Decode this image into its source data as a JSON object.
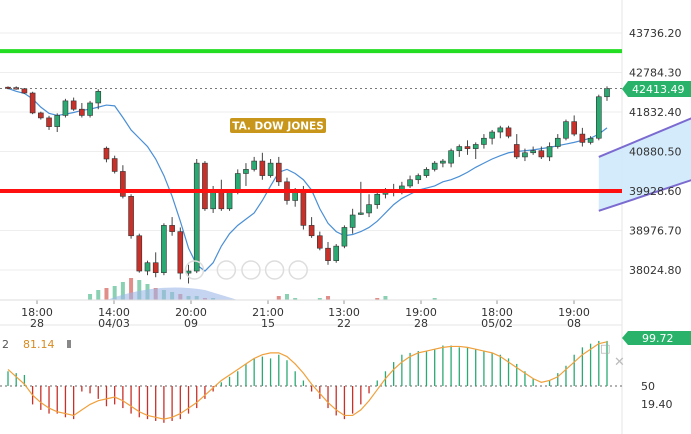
{
  "instrument_label": "TA. DOW JONES",
  "last_price_label": "42413.49",
  "ind_value_left": "81.14",
  "ind_prefix": "2",
  "ind_value_right": "99.72",
  "colors": {
    "support": "#ff1010",
    "resistance": "#22dd22",
    "up": "#2aaa72",
    "down": "#c8302a",
    "ma": "#4a8fd6",
    "channel_fill": "#cde7fb",
    "channel_line": "#7b6bd0",
    "badge": "#c8961a",
    "price_badge": "#29b36a",
    "osc_line": "#f0a03c"
  },
  "chart_data": [
    {
      "type": "candlestick",
      "y_ticks": [
        "43736.20",
        "42784.30",
        "41832.40",
        "40880.50",
        "39928.60",
        "38976.70",
        "38024.80"
      ],
      "x_ticks": [
        {
          "top": "18:00",
          "bottom": "28"
        },
        {
          "top": "14:00",
          "bottom": "04/03"
        },
        {
          "top": "20:00",
          "bottom": "09"
        },
        {
          "top": "21:00",
          "bottom": "15"
        },
        {
          "top": "13:00",
          "bottom": "22"
        },
        {
          "top": "19:00",
          "bottom": "28"
        },
        {
          "top": "18:00",
          "bottom": "05/02"
        },
        {
          "top": "19:00",
          "bottom": "08"
        }
      ],
      "horizontal_lines": [
        {
          "name": "resistance",
          "value": 43300
        },
        {
          "name": "support",
          "value": 39930
        }
      ],
      "candles": [
        [
          42430,
          42450,
          42380,
          42420
        ],
        [
          42420,
          42450,
          42370,
          42390
        ],
        [
          42390,
          42410,
          42270,
          42290
        ],
        [
          42290,
          42320,
          41780,
          41810
        ],
        [
          41810,
          41840,
          41650,
          41690
        ],
        [
          41690,
          41740,
          41400,
          41480
        ],
        [
          41480,
          41800,
          41350,
          41750
        ],
        [
          41750,
          42150,
          41700,
          42100
        ],
        [
          42100,
          42180,
          41860,
          41900
        ],
        [
          41900,
          42050,
          41700,
          41750
        ],
        [
          41750,
          42100,
          41700,
          42050
        ],
        [
          42050,
          42380,
          41900,
          42330
        ],
        [
          40960,
          41000,
          40620,
          40700
        ],
        [
          40710,
          40780,
          40350,
          40400
        ],
        [
          40400,
          40550,
          39750,
          39800
        ],
        [
          39800,
          39850,
          38780,
          38850
        ],
        [
          38850,
          38900,
          37960,
          38000
        ],
        [
          38000,
          38250,
          37900,
          38200
        ],
        [
          38200,
          38450,
          37850,
          37960
        ],
        [
          37960,
          39150,
          37900,
          39100
        ],
        [
          39100,
          39300,
          38850,
          38950
        ],
        [
          38950,
          39050,
          37800,
          37950
        ],
        [
          37950,
          38150,
          37700,
          38000
        ],
        [
          38000,
          40700,
          37950,
          40600
        ],
        [
          40600,
          40650,
          39450,
          39500
        ],
        [
          39500,
          40050,
          39400,
          39950
        ],
        [
          39950,
          40200,
          39450,
          39500
        ],
        [
          39500,
          39950,
          39450,
          39900
        ],
        [
          39900,
          40450,
          39850,
          40350
        ],
        [
          40350,
          40600,
          40050,
          40450
        ],
        [
          40450,
          40750,
          40400,
          40650
        ],
        [
          40650,
          40850,
          40200,
          40300
        ],
        [
          40300,
          40700,
          40250,
          40600
        ],
        [
          40600,
          40750,
          40050,
          40150
        ],
        [
          40150,
          40250,
          39600,
          39700
        ],
        [
          39700,
          40000,
          39550,
          39950
        ],
        [
          39950,
          40050,
          39000,
          39100
        ],
        [
          39100,
          39300,
          38800,
          38850
        ],
        [
          38850,
          38950,
          38500,
          38550
        ],
        [
          38550,
          38700,
          38150,
          38250
        ],
        [
          38250,
          38650,
          38200,
          38600
        ],
        [
          38600,
          39100,
          38550,
          39050
        ],
        [
          39050,
          39500,
          38900,
          39350
        ],
        [
          39400,
          40150,
          39350,
          39400
        ],
        [
          39400,
          39850,
          39300,
          39600
        ],
        [
          39600,
          39900,
          39500,
          39850
        ],
        [
          39850,
          40000,
          39750,
          39950
        ],
        [
          39950,
          40100,
          39800,
          39900
        ],
        [
          39900,
          40150,
          39850,
          40050
        ],
        [
          40050,
          40300,
          40000,
          40200
        ],
        [
          40200,
          40350,
          40100,
          40300
        ],
        [
          40300,
          40500,
          40250,
          40450
        ],
        [
          40450,
          40650,
          40400,
          40600
        ],
        [
          40600,
          40700,
          40500,
          40650
        ],
        [
          40600,
          40950,
          40500,
          40900
        ],
        [
          40900,
          41050,
          40750,
          41000
        ],
        [
          41000,
          41150,
          40800,
          40950
        ],
        [
          40950,
          41100,
          40700,
          41050
        ],
        [
          41050,
          41300,
          40950,
          41200
        ],
        [
          41200,
          41400,
          41050,
          41350
        ],
        [
          41350,
          41500,
          41200,
          41450
        ],
        [
          41450,
          41500,
          41200,
          41250
        ],
        [
          41050,
          41300,
          40700,
          40750
        ],
        [
          40750,
          40950,
          40650,
          40850
        ],
        [
          40850,
          41000,
          40800,
          40900
        ],
        [
          40900,
          41000,
          40700,
          40750
        ],
        [
          40750,
          41100,
          40650,
          41000
        ],
        [
          41000,
          41300,
          40950,
          41200
        ],
        [
          41200,
          41650,
          41150,
          41600
        ],
        [
          41600,
          41750,
          41250,
          41300
        ],
        [
          41300,
          41450,
          41000,
          41100
        ],
        [
          41100,
          41250,
          41050,
          41200
        ],
        [
          41200,
          42250,
          41150,
          42200
        ],
        [
          42200,
          42450,
          42100,
          42400
        ]
      ],
      "moving_average": [
        42400,
        42330,
        42280,
        42150,
        41950,
        41800,
        41750,
        41780,
        41820,
        41870,
        41900,
        41950,
        42000,
        41980,
        41700,
        41400,
        41200,
        41000,
        40700,
        40300,
        39800,
        39200,
        38550,
        38150,
        38000,
        38200,
        38600,
        38900,
        39100,
        39250,
        39400,
        39700,
        40050,
        40380,
        40450,
        40350,
        40200,
        39950,
        39500,
        39150,
        38950,
        38850,
        38880,
        38950,
        39050,
        39200,
        39400,
        39600,
        39750,
        39850,
        39950,
        40000,
        40050,
        40150,
        40200,
        40280,
        40380,
        40500,
        40600,
        40700,
        40780,
        40850,
        40880,
        40900,
        40920,
        40950,
        40980,
        41020,
        41060,
        41100,
        41150,
        41200,
        41300,
        41450
      ],
      "channel": {
        "lower_start": [
          72,
          39450
        ],
        "lower_end": [
          100,
          41400
        ],
        "upper_start": [
          72,
          40750
        ],
        "upper_end": [
          100,
          43200
        ]
      }
    },
    {
      "type": "oscillator",
      "y_ticks": [
        "50",
        "19.40"
      ],
      "histogram": [
        66,
        64,
        62,
        30,
        24,
        20,
        20,
        16,
        14,
        44,
        42,
        36,
        28,
        30,
        26,
        20,
        16,
        14,
        12,
        10,
        12,
        14,
        20,
        26,
        36,
        44,
        54,
        60,
        66,
        74,
        80,
        82,
        80,
        84,
        78,
        66,
        56,
        44,
        36,
        26,
        18,
        14,
        20,
        30,
        42,
        56,
        66,
        76,
        84,
        86,
        88,
        88,
        90,
        94,
        94,
        92,
        92,
        90,
        88,
        86,
        84,
        80,
        74,
        66,
        58,
        50,
        56,
        64,
        72,
        84,
        92,
        96,
        99,
        99
      ],
      "line": [
        68,
        60,
        52,
        40,
        32,
        26,
        22,
        20,
        18,
        24,
        30,
        34,
        36,
        38,
        34,
        28,
        22,
        18,
        16,
        14,
        16,
        20,
        26,
        32,
        40,
        48,
        56,
        62,
        68,
        74,
        80,
        84,
        86,
        86,
        82,
        74,
        64,
        52,
        42,
        32,
        24,
        18,
        18,
        24,
        34,
        46,
        58,
        68,
        76,
        82,
        86,
        88,
        90,
        92,
        93,
        93,
        92,
        90,
        88,
        86,
        82,
        76,
        70,
        64,
        58,
        54,
        56,
        60,
        68,
        76,
        84,
        90,
        96,
        98
      ]
    }
  ]
}
